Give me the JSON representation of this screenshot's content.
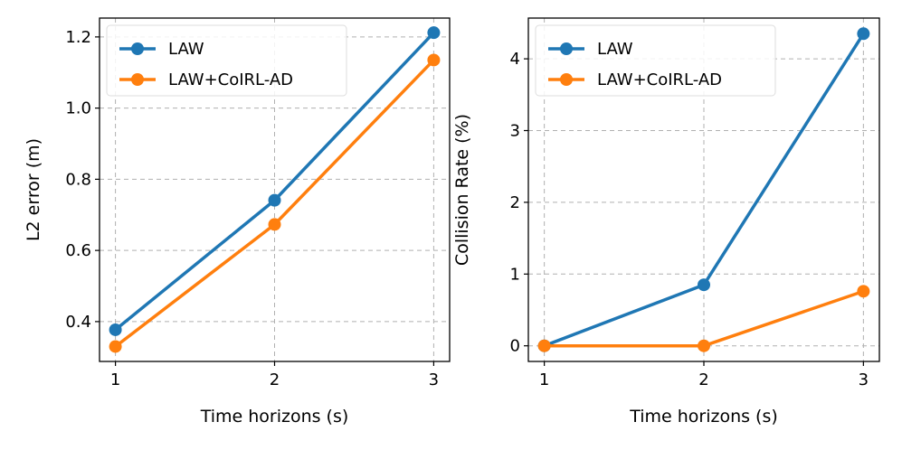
{
  "chart_data": [
    {
      "type": "line",
      "title": "",
      "xlabel": "Time horizons (s)",
      "ylabel": "L2 error (m)",
      "x": [
        1,
        2,
        3
      ],
      "x_ticks": [
        "1",
        "2",
        "3"
      ],
      "y_ticks": [
        "0.4",
        "0.6",
        "0.8",
        "1.0",
        "1.2"
      ],
      "xlim": [
        0.9,
        3.1
      ],
      "ylim": [
        0.288,
        1.253
      ],
      "grid": true,
      "legend_position": "top-left",
      "series": [
        {
          "name": "LAW",
          "color": "#1f77b4",
          "values": [
            0.377,
            0.741,
            1.212
          ]
        },
        {
          "name": "LAW+CoIRL-AD",
          "color": "#ff7f0e",
          "values": [
            0.33,
            0.673,
            1.135
          ]
        }
      ]
    },
    {
      "type": "line",
      "title": "",
      "xlabel": "Time horizons (s)",
      "ylabel": "Collision Rate (%)",
      "x": [
        1,
        2,
        3
      ],
      "x_ticks": [
        "1",
        "2",
        "3"
      ],
      "y_ticks": [
        "0",
        "1",
        "2",
        "3",
        "4"
      ],
      "xlim": [
        0.9,
        3.1
      ],
      "ylim": [
        -0.218,
        4.568
      ],
      "grid": true,
      "legend_position": "top-left",
      "series": [
        {
          "name": "LAW",
          "color": "#1f77b4",
          "values": [
            0.0,
            0.85,
            4.35
          ]
        },
        {
          "name": "LAW+CoIRL-AD",
          "color": "#ff7f0e",
          "values": [
            0.0,
            0.0,
            0.76
          ]
        }
      ]
    }
  ]
}
